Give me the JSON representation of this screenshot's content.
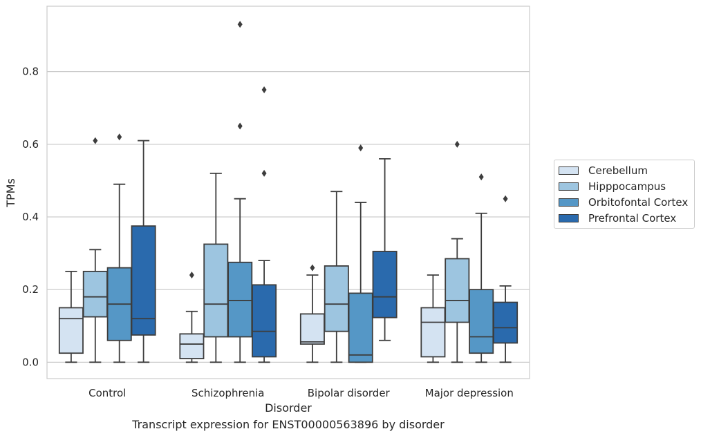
{
  "chart_data": {
    "type": "box",
    "title": "",
    "caption": "Transcript expression for ENST00000563896 by disorder",
    "xlabel": "Disorder",
    "ylabel": "TPMs",
    "ylim": [
      -0.045,
      0.98
    ],
    "yticks": [
      "0.0",
      "0.2",
      "0.4",
      "0.6",
      "0.8"
    ],
    "ytick_values": [
      0.0,
      0.2,
      0.4,
      0.6,
      0.8
    ],
    "grid": "horizontal",
    "legend_position": "right",
    "categories": [
      "Control",
      "Schizophrenia",
      "Bipolar disorder",
      "Major depression"
    ],
    "series": [
      {
        "name": "Cerebellum",
        "color": "#d4e3f2",
        "boxes": [
          {
            "whisker_low": 0.0,
            "q1": 0.025,
            "median": 0.12,
            "q3": 0.15,
            "whisker_high": 0.25,
            "outliers": []
          },
          {
            "whisker_low": 0.0,
            "q1": 0.01,
            "median": 0.05,
            "q3": 0.078,
            "whisker_high": 0.14,
            "outliers": [
              0.24
            ]
          },
          {
            "whisker_low": 0.0,
            "q1": 0.05,
            "median": 0.056,
            "q3": 0.133,
            "whisker_high": 0.24,
            "outliers": [
              0.26
            ]
          },
          {
            "whisker_low": 0.0,
            "q1": 0.015,
            "median": 0.11,
            "q3": 0.15,
            "whisker_high": 0.24,
            "outliers": []
          }
        ]
      },
      {
        "name": "Hipppocampus",
        "color": "#9dc5e0",
        "boxes": [
          {
            "whisker_low": 0.0,
            "q1": 0.125,
            "median": 0.18,
            "q3": 0.25,
            "whisker_high": 0.31,
            "outliers": [
              0.61
            ]
          },
          {
            "whisker_low": 0.0,
            "q1": 0.07,
            "median": 0.16,
            "q3": 0.325,
            "whisker_high": 0.52,
            "outliers": []
          },
          {
            "whisker_low": 0.0,
            "q1": 0.085,
            "median": 0.16,
            "q3": 0.265,
            "whisker_high": 0.47,
            "outliers": []
          },
          {
            "whisker_low": 0.0,
            "q1": 0.11,
            "median": 0.17,
            "q3": 0.285,
            "whisker_high": 0.34,
            "outliers": [
              0.6
            ]
          }
        ]
      },
      {
        "name": "Orbitofontal Cortex",
        "color": "#5597c6",
        "boxes": [
          {
            "whisker_low": 0.0,
            "q1": 0.06,
            "median": 0.16,
            "q3": 0.26,
            "whisker_high": 0.49,
            "outliers": [
              0.62
            ]
          },
          {
            "whisker_low": 0.0,
            "q1": 0.07,
            "median": 0.17,
            "q3": 0.275,
            "whisker_high": 0.45,
            "outliers": [
              0.65,
              0.93
            ]
          },
          {
            "whisker_low": 0.0,
            "q1": 0.0,
            "median": 0.02,
            "q3": 0.19,
            "whisker_high": 0.44,
            "outliers": [
              0.59
            ]
          },
          {
            "whisker_low": 0.0,
            "q1": 0.025,
            "median": 0.07,
            "q3": 0.2,
            "whisker_high": 0.41,
            "outliers": [
              0.51
            ]
          }
        ]
      },
      {
        "name": "Prefrontal Cortex",
        "color": "#2a6aad",
        "boxes": [
          {
            "whisker_low": 0.0,
            "q1": 0.075,
            "median": 0.12,
            "q3": 0.375,
            "whisker_high": 0.61,
            "outliers": []
          },
          {
            "whisker_low": 0.0,
            "q1": 0.015,
            "median": 0.085,
            "q3": 0.213,
            "whisker_high": 0.28,
            "outliers": [
              0.52,
              0.75
            ]
          },
          {
            "whisker_low": 0.06,
            "q1": 0.123,
            "median": 0.18,
            "q3": 0.305,
            "whisker_high": 0.56,
            "outliers": []
          },
          {
            "whisker_low": 0.0,
            "q1": 0.053,
            "median": 0.095,
            "q3": 0.165,
            "whisker_high": 0.21,
            "outliers": [
              0.45
            ]
          }
        ]
      }
    ]
  }
}
